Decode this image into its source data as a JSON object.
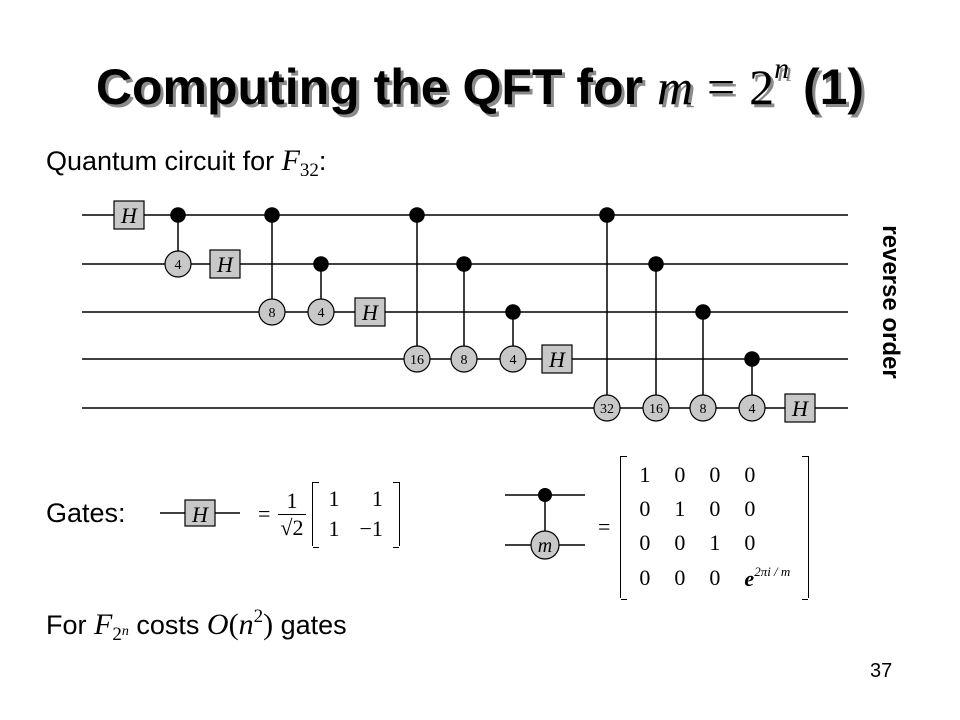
{
  "title": {
    "text": "Computing the QFT for",
    "m": "m",
    "eq": "=",
    "base": "2",
    "exp": "n",
    "suffix": "(1)"
  },
  "circuit_caption": {
    "text": "Quantum circuit for",
    "F": "F",
    "sub": "32",
    "colon": ":"
  },
  "side_label": "reverse order",
  "gates_label": "Gates:",
  "circuit": {
    "hadamard_label": "H",
    "wire_count": 5,
    "controlled_gate_labels": [
      "4",
      "8",
      "4",
      "16",
      "8",
      "4",
      "32",
      "16",
      "8",
      "4"
    ]
  },
  "gate_defs": {
    "h_gate": "H",
    "h_eq": "=",
    "h_frac_num": "1",
    "h_frac_den": "√2",
    "h_matrix": [
      [
        "1",
        "1"
      ],
      [
        "1",
        "−1"
      ]
    ],
    "cm_gate": "m",
    "cm_eq": "=",
    "cm_matrix": [
      [
        "1",
        "0",
        "0",
        "0"
      ],
      [
        "0",
        "1",
        "0",
        "0"
      ],
      [
        "0",
        "0",
        "1",
        "0"
      ],
      [
        "0",
        "0",
        "0",
        "e2πi/m"
      ]
    ],
    "cm_exp_base": "e",
    "cm_exp_power": "2πi / m"
  },
  "cost": {
    "prefix": "For",
    "F": "F",
    "sub_base": "2",
    "sub_exp": "n",
    "mid": "costs",
    "O": "O",
    "paren_open": "(",
    "n": "n",
    "sq": "2",
    "paren_close": ")",
    "suffix": "gates"
  },
  "page_number": "37",
  "colors": {
    "gate_fill": "#c8c8c8",
    "title_shadow": "#8a8a8a",
    "ink": "#000000"
  }
}
